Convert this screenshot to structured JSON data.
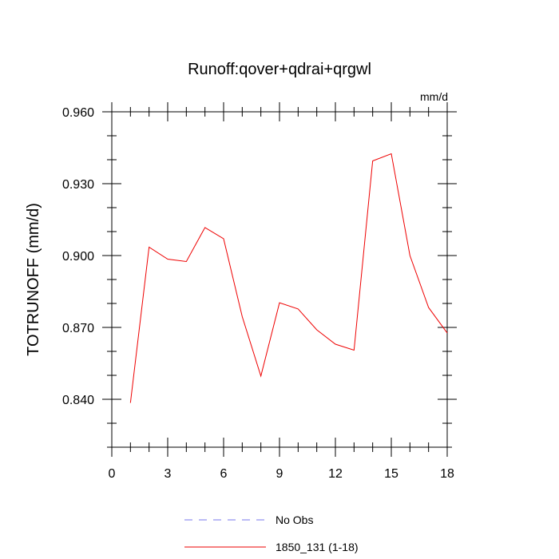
{
  "chart_data": {
    "type": "line",
    "title": "Runoff:qover+qdrai+qrgwl",
    "units": "mm/d",
    "xlabel": "",
    "ylabel": "TOTRUNOFF  (mm/d)",
    "xlim": [
      0,
      18
    ],
    "ylim": [
      0.82,
      0.96
    ],
    "x_ticks": [
      0,
      3,
      6,
      9,
      12,
      15,
      18
    ],
    "x_tick_labels": [
      "0",
      "3",
      "6",
      "9",
      "12",
      "15",
      "18"
    ],
    "y_ticks": [
      0.84,
      0.87,
      0.9,
      0.93,
      0.96
    ],
    "y_tick_labels": [
      "0.840",
      "0.870",
      "0.900",
      "0.930",
      "0.960"
    ],
    "grid": false,
    "legend_position": "bottom",
    "series": [
      {
        "name": "No Obs",
        "style": "dashed",
        "color": "#7777ee",
        "x": [],
        "y": []
      },
      {
        "name": "1850_131 (1-18)",
        "style": "solid",
        "color": "#ee0000",
        "x": [
          1,
          2,
          3,
          4,
          5,
          6,
          7,
          8,
          9,
          10,
          11,
          12,
          13,
          14,
          15,
          16,
          17,
          18
        ],
        "y": [
          0.8385,
          0.9035,
          0.8985,
          0.8975,
          0.9117,
          0.907,
          0.8745,
          0.8497,
          0.8803,
          0.8777,
          0.869,
          0.863,
          0.8605,
          0.9395,
          0.9425,
          0.9,
          0.8783,
          0.8677
        ]
      }
    ]
  }
}
